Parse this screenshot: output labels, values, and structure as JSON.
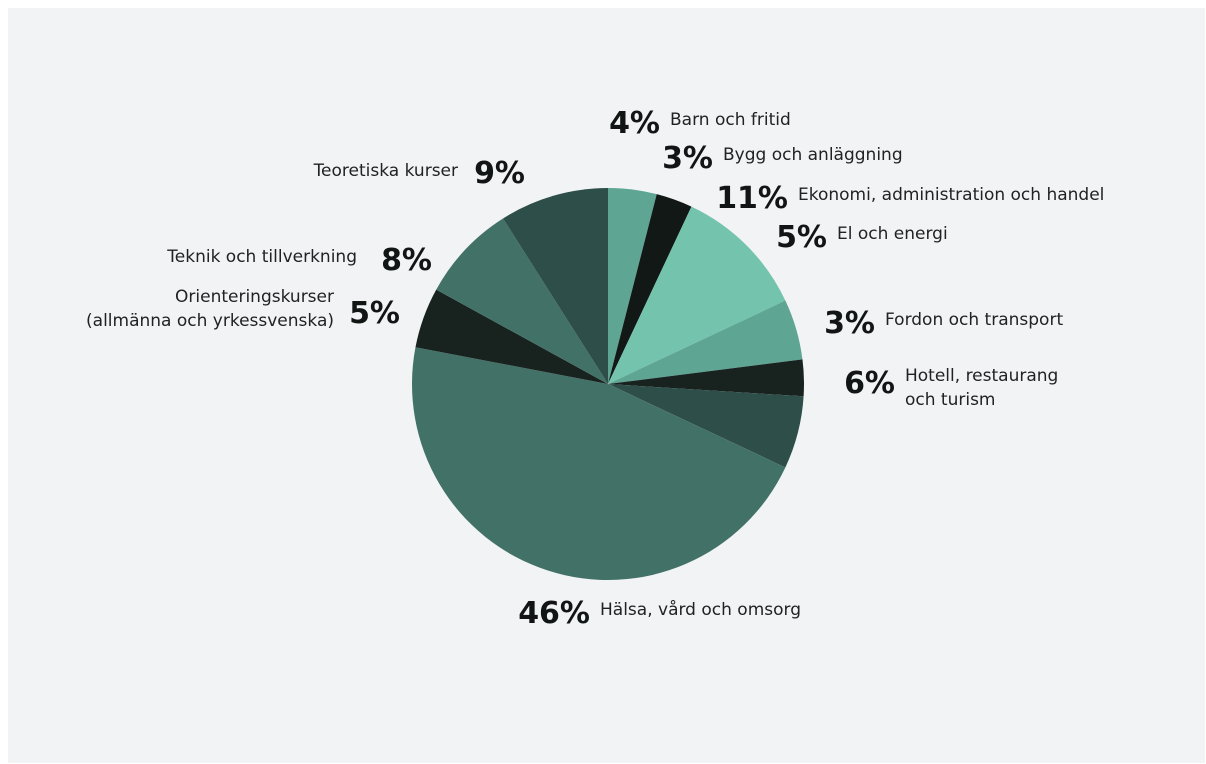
{
  "chart_data": {
    "type": "pie",
    "start_angle_deg": 0,
    "direction": "clockwise",
    "slices": [
      {
        "name": "Barn och fritid",
        "value": 4,
        "value_label": "4%",
        "color": "#5ea594"
      },
      {
        "name": "Bygg och anläggning",
        "value": 3,
        "value_label": "3%",
        "color": "#111816"
      },
      {
        "name": "Ekonomi, administration och handel",
        "value": 11,
        "value_label": "11%",
        "color": "#74c4ad"
      },
      {
        "name": "El och energi",
        "value": 5,
        "value_label": "5%",
        "color": "#5ea594"
      },
      {
        "name": "Fordon och transport",
        "value": 3,
        "value_label": "3%",
        "color": "#182320"
      },
      {
        "name": "Hotell, restaurang\noch turism",
        "value": 6,
        "value_label": "6%",
        "color": "#2e4f49"
      },
      {
        "name": "Hälsa, vård och omsorg",
        "value": 46,
        "value_label": "46%",
        "color": "#427167"
      },
      {
        "name": "Orienteringskurser\n(allmänna och yrkessvenska)",
        "value": 5,
        "value_label": "5%",
        "color": "#182320"
      },
      {
        "name": "Teknik och  tillverkning",
        "value": 8,
        "value_label": "8%",
        "color": "#427167"
      },
      {
        "name": "Teoretiska kurser",
        "value": 9,
        "value_label": "9%",
        "color": "#2e4f49"
      }
    ]
  }
}
